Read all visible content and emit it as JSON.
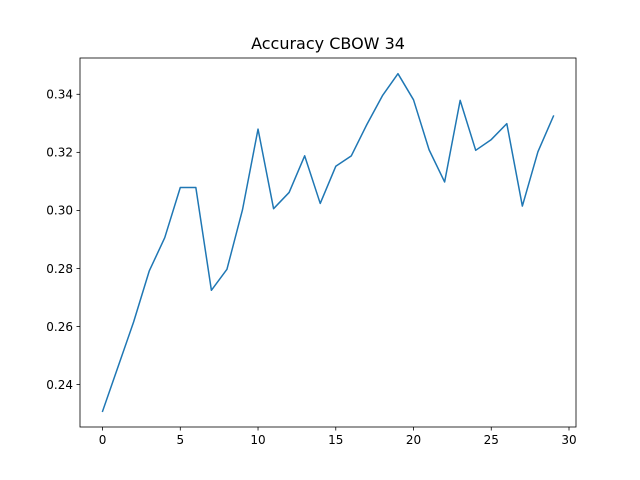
{
  "chart_data": {
    "type": "line",
    "title": "Accuracy CBOW 34",
    "xlabel": "",
    "ylabel": "",
    "xlim": [
      -1.45,
      30.45
    ],
    "ylim": [
      0.2254,
      0.3525
    ],
    "x_ticks": [
      0,
      5,
      10,
      15,
      20,
      25,
      30
    ],
    "y_ticks": [
      0.24,
      0.26,
      0.28,
      0.3,
      0.32,
      0.34
    ],
    "x_tick_labels": [
      "0",
      "5",
      "10",
      "15",
      "20",
      "25",
      "30"
    ],
    "y_tick_labels": [
      "0.24",
      "0.26",
      "0.28",
      "0.30",
      "0.32",
      "0.34"
    ],
    "grid": false,
    "legend": "none",
    "series": [
      {
        "color": "#1f77b4",
        "x": [
          0,
          1,
          2,
          3,
          4,
          5,
          6,
          7,
          8,
          9,
          10,
          11,
          12,
          13,
          14,
          15,
          16,
          17,
          18,
          19,
          20,
          21,
          22,
          23,
          24,
          25,
          26,
          27,
          28,
          29
        ],
        "values": [
          0.2308,
          0.2462,
          0.2616,
          0.2791,
          0.2906,
          0.3079,
          0.3079,
          0.2725,
          0.2797,
          0.3002,
          0.328,
          0.3006,
          0.3062,
          0.3188,
          0.3024,
          0.3152,
          0.3188,
          0.3296,
          0.3395,
          0.3471,
          0.3381,
          0.3209,
          0.3098,
          0.3379,
          0.3207,
          0.3244,
          0.3299,
          0.3015,
          0.3202,
          0.3325
        ]
      }
    ]
  }
}
